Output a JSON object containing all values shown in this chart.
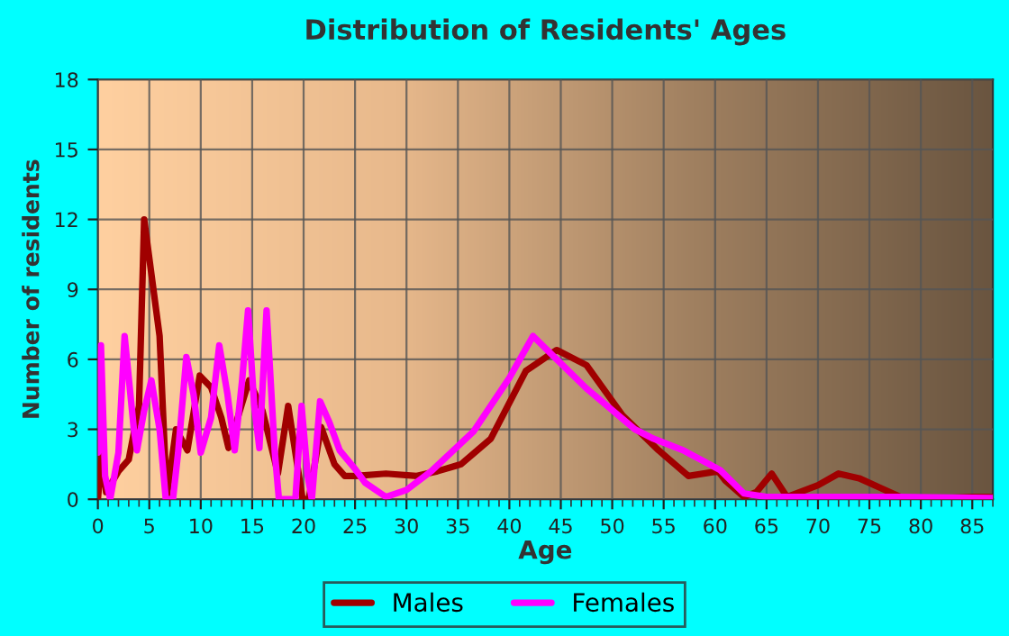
{
  "chart_data": {
    "type": "line",
    "title": "Distribution of Residents' Ages",
    "xlabel": "Age",
    "ylabel": "Number of residents",
    "xlim": [
      0,
      87
    ],
    "xticks": [
      0,
      5,
      10,
      15,
      20,
      25,
      30,
      35,
      40,
      45,
      50,
      55,
      60,
      65,
      70,
      75,
      80,
      85
    ],
    "ylim": [
      0,
      18
    ],
    "yticks": [
      0,
      3,
      6,
      9,
      12,
      15,
      18
    ],
    "grid": true,
    "legend": "bottom",
    "line_style": "solid",
    "series": [
      {
        "name": "Males",
        "color": "#a00000",
        "x": [
          0,
          0.4,
          0.8,
          2,
          3,
          4,
          4.5,
          6,
          6.7,
          7.6,
          8.7,
          9.9,
          11,
          12,
          12.7,
          14.7,
          16,
          17.5,
          18.5,
          19.9,
          20.5,
          21.7,
          23,
          24,
          25,
          28,
          31,
          33,
          35.3,
          38.2,
          41.6,
          44.6,
          47.5,
          51,
          54.5,
          57.4,
          60.3,
          61,
          62.8,
          64,
          65.5,
          67,
          70,
          72,
          74,
          76,
          78,
          80,
          85,
          87
        ],
        "values": [
          0,
          2,
          0.3,
          1.2,
          1.7,
          4,
          12,
          7,
          0.1,
          3,
          2.1,
          5.3,
          4.8,
          3.5,
          2.2,
          5.1,
          3.8,
          1.1,
          4,
          0,
          0,
          3.1,
          1.5,
          1,
          1,
          1.1,
          1,
          1.2,
          1.5,
          2.6,
          5.5,
          6.4,
          5.75,
          3.6,
          2.1,
          1,
          1.2,
          0.8,
          0.1,
          0.3,
          1.1,
          0.1,
          0.6,
          1.1,
          0.9,
          0.5,
          0.1,
          0,
          0.1,
          0.1
        ]
      },
      {
        "name": "Females",
        "color": "#ff00ff",
        "x": [
          0,
          0.3,
          0.7,
          1.2,
          2,
          2.6,
          3.5,
          3.8,
          4.5,
          5.2,
          6,
          6.6,
          7.3,
          7.8,
          8.6,
          9.3,
          10,
          11,
          11.8,
          12.6,
          13.3,
          14,
          14.6,
          15.2,
          15.7,
          16.4,
          17.2,
          17.6,
          18.4,
          19.2,
          19.8,
          20.4,
          20.8,
          21.6,
          22.5,
          23.5,
          25,
          26,
          28,
          30,
          32.4,
          36.5,
          40,
          42.3,
          44.6,
          47.5,
          52.2,
          54,
          56.9,
          60.5,
          62.8,
          65,
          78,
          87
        ],
        "values": [
          2,
          6.6,
          1,
          0,
          2,
          7,
          3,
          2.1,
          3.8,
          5.1,
          3,
          0,
          0,
          2,
          6.1,
          4.5,
          2,
          3.5,
          6.6,
          4.5,
          2.1,
          5,
          8.1,
          4,
          2.2,
          8.1,
          2,
          0,
          0,
          0,
          4,
          1,
          0,
          4.2,
          3.3,
          2.1,
          1.3,
          0.7,
          0.1,
          0.4,
          1.2,
          2.9,
          5.2,
          7,
          6,
          4.75,
          3,
          2.6,
          2.1,
          1.25,
          0.25,
          0.1,
          0.1,
          0.05
        ]
      }
    ]
  }
}
